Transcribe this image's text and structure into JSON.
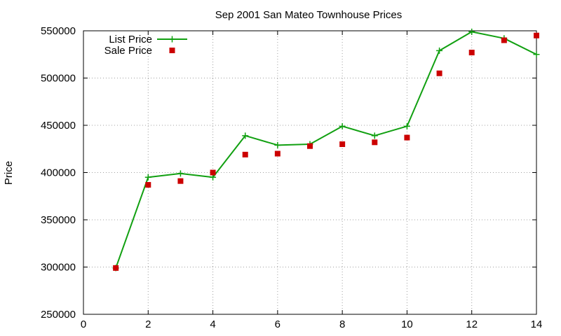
{
  "chart_data": {
    "type": "line",
    "title": "Sep 2001 San Mateo Townhouse Prices",
    "xlabel": "",
    "ylabel": "Price",
    "xlim": [
      0,
      14
    ],
    "ylim": [
      250000,
      550000
    ],
    "x_ticks": [
      0,
      2,
      4,
      6,
      8,
      10,
      12,
      14
    ],
    "y_ticks": [
      250000,
      300000,
      350000,
      400000,
      450000,
      500000,
      550000
    ],
    "grid": true,
    "legend_position": "top-left",
    "series": [
      {
        "name": "List Price",
        "style": "lines+points",
        "color": "#11a011",
        "x": [
          1,
          2,
          3,
          4,
          5,
          6,
          7,
          8,
          9,
          10,
          11,
          12,
          13,
          14
        ],
        "values": [
          299000,
          395000,
          399000,
          395000,
          439000,
          429000,
          430000,
          449000,
          439000,
          449000,
          529000,
          549000,
          542000,
          525000
        ]
      },
      {
        "name": "Sale Price",
        "style": "points",
        "color": "#cc0000",
        "x": [
          1,
          2,
          3,
          4,
          5,
          6,
          7,
          8,
          9,
          10,
          11,
          12,
          13,
          14
        ],
        "values": [
          299000,
          387000,
          391000,
          400000,
          419000,
          420000,
          428000,
          430000,
          432000,
          437000,
          505000,
          527000,
          540000,
          545000
        ]
      }
    ]
  }
}
